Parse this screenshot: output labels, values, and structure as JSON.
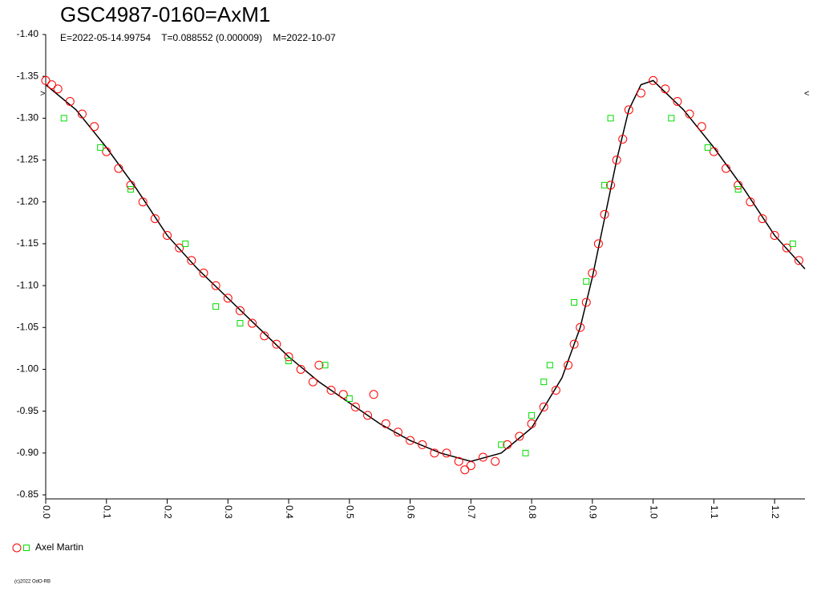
{
  "chart_data": {
    "type": "scatter",
    "title": "GSC4987-0160=AxM1",
    "subtitle": "E=2022-05-14.99754    T=0.088552 (0.000009)    M=2022-10-07",
    "footer": "(c)2022 OdO-RB",
    "annotations": [
      ">",
      "<"
    ],
    "xlim": [
      0,
      1.25
    ],
    "ylim": [
      -1.4,
      -0.85
    ],
    "invert_y": true,
    "xticks": [
      {
        "value": 0,
        "label": "0.0"
      },
      0.1,
      0.2,
      0.3,
      0.4,
      0.5,
      0.6,
      0.7,
      0.8,
      0.9,
      {
        "value": 1,
        "label": "1.0"
      },
      1.1,
      1.2
    ],
    "yticks": [
      {
        "value": -1.4,
        "label": "-1.40"
      },
      -1.35,
      {
        "value": -1.3,
        "label": "-1.30"
      },
      -1.25,
      {
        "value": -1.2,
        "label": "-1.20"
      },
      -1.15,
      {
        "value": -1.1,
        "label": "-1.10"
      },
      -1.05,
      {
        "value": -1.0,
        "label": "-1.00"
      },
      -0.95,
      {
        "value": -0.9,
        "label": "-0.90"
      },
      -0.85
    ],
    "series": [
      {
        "name": "Axel Martin",
        "color": "#ff0000",
        "marker": "circle",
        "x": [
          0.0,
          0.01,
          0.02,
          0.04,
          0.06,
          0.08,
          0.1,
          0.12,
          0.14,
          0.16,
          0.18,
          0.2,
          0.22,
          0.24,
          0.26,
          0.28,
          0.3,
          0.32,
          0.34,
          0.36,
          0.38,
          0.4,
          0.42,
          0.44,
          0.45,
          0.47,
          0.49,
          0.51,
          0.53,
          0.54,
          0.56,
          0.58,
          0.6,
          0.62,
          0.64,
          0.66,
          0.68,
          0.69,
          0.7,
          0.72,
          0.74,
          0.76,
          0.78,
          0.8,
          0.82,
          0.84,
          0.86,
          0.87,
          0.88,
          0.89,
          0.9,
          0.91,
          0.92,
          0.93,
          0.94,
          0.95,
          0.96,
          0.98,
          1.0,
          1.02,
          1.04,
          1.06,
          1.08,
          1.1,
          1.12,
          1.14,
          1.16,
          1.18,
          1.2,
          1.22,
          1.24
        ],
        "values": [
          -1.345,
          -1.34,
          -1.335,
          -1.32,
          -1.305,
          -1.29,
          -1.26,
          -1.24,
          -1.22,
          -1.2,
          -1.18,
          -1.16,
          -1.145,
          -1.13,
          -1.115,
          -1.1,
          -1.085,
          -1.07,
          -1.055,
          -1.04,
          -1.03,
          -1.015,
          -1.0,
          -0.985,
          -1.005,
          -0.975,
          -0.97,
          -0.955,
          -0.945,
          -0.97,
          -0.935,
          -0.925,
          -0.915,
          -0.91,
          -0.9,
          -0.9,
          -0.89,
          -0.88,
          -0.885,
          -0.895,
          -0.89,
          -0.91,
          -0.92,
          -0.935,
          -0.955,
          -0.975,
          -1.005,
          -1.03,
          -1.05,
          -1.08,
          -1.115,
          -1.15,
          -1.185,
          -1.22,
          -1.25,
          -1.275,
          -1.31,
          -1.33,
          -1.345,
          -1.335,
          -1.32,
          -1.305,
          -1.29,
          -1.26,
          -1.24,
          -1.22,
          -1.2,
          -1.18,
          -1.16,
          -1.145,
          -1.13
        ]
      },
      {
        "color": "#00dd00",
        "marker": "square",
        "x": [
          0.03,
          0.09,
          0.14,
          0.23,
          0.28,
          0.32,
          0.4,
          0.46,
          0.5,
          0.75,
          0.79,
          0.8,
          0.82,
          0.83,
          0.87,
          0.89,
          0.92,
          0.93,
          1.03,
          1.09,
          1.14,
          1.23
        ],
        "values": [
          -1.3,
          -1.265,
          -1.215,
          -1.15,
          -1.075,
          -1.055,
          -1.01,
          -1.005,
          -0.965,
          -0.91,
          -0.9,
          -0.945,
          -0.985,
          -1.005,
          -1.08,
          -1.105,
          -1.22,
          -1.3,
          -1.3,
          -1.265,
          -1.215,
          -1.15
        ]
      }
    ],
    "fit": {
      "color": "#000000",
      "x": [
        0.0,
        0.05,
        0.1,
        0.15,
        0.2,
        0.25,
        0.3,
        0.35,
        0.4,
        0.45,
        0.5,
        0.55,
        0.6,
        0.65,
        0.7,
        0.75,
        0.8,
        0.85,
        0.88,
        0.9,
        0.92,
        0.94,
        0.96,
        0.98,
        1.0,
        1.05,
        1.1,
        1.15,
        1.2,
        1.25
      ],
      "values": [
        -1.34,
        -1.31,
        -1.265,
        -1.215,
        -1.16,
        -1.12,
        -1.085,
        -1.05,
        -1.015,
        -0.985,
        -0.96,
        -0.935,
        -0.915,
        -0.9,
        -0.89,
        -0.9,
        -0.93,
        -0.99,
        -1.05,
        -1.11,
        -1.18,
        -1.25,
        -1.31,
        -1.34,
        -1.345,
        -1.31,
        -1.265,
        -1.215,
        -1.16,
        -1.12
      ]
    }
  }
}
